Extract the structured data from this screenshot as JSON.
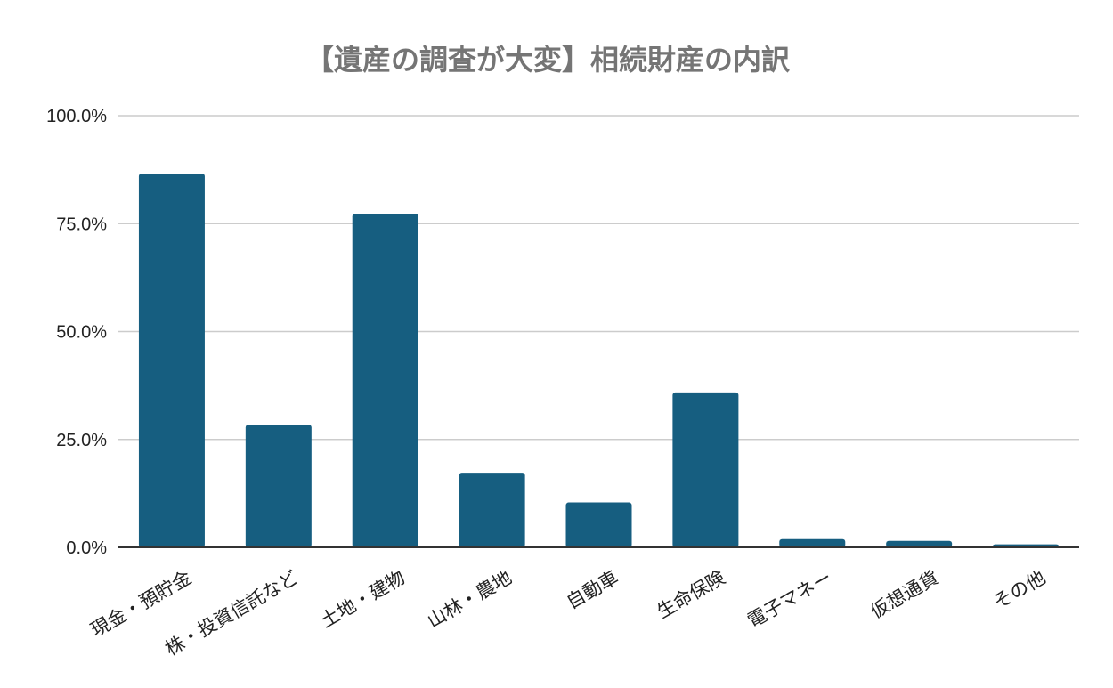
{
  "chart_data": {
    "type": "bar",
    "title": "【遺産の調査が大変】相続財産の内訳",
    "xlabel": "",
    "ylabel": "",
    "categories": [
      "現金・預貯金",
      "株・投資信託など",
      "土地・建物",
      "山林・農地",
      "自動車",
      "生命保険",
      "電子マネー",
      "仮想通貨",
      "その他"
    ],
    "values": [
      86.6,
      28.4,
      77.3,
      17.3,
      10.4,
      35.9,
      1.9,
      1.5,
      0.7
    ],
    "ylim": [
      0,
      100
    ],
    "yticks": [
      0,
      25,
      50,
      75,
      100
    ],
    "ytick_labels": [
      "0.0%",
      "25.0%",
      "50.0%",
      "75.0%",
      "100.0%"
    ],
    "grid": true,
    "legend": "none",
    "bar_color": "#165e80",
    "category_label_rotation": -30
  }
}
